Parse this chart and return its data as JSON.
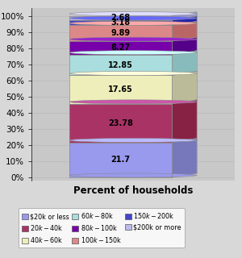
{
  "values": [
    21.7,
    23.78,
    17.65,
    12.85,
    8.27,
    9.89,
    3.18,
    2.68
  ],
  "colors_front": [
    "#9999EE",
    "#AA3366",
    "#EEEEBB",
    "#AADDDD",
    "#7700AA",
    "#DD8888",
    "#4444CC",
    "#BBBBEE"
  ],
  "colors_side": [
    "#7777BB",
    "#882244",
    "#BBBB99",
    "#88BBBB",
    "#550088",
    "#BB6666",
    "#2222AA",
    "#9999CC"
  ],
  "colors_top": [
    "#BBBBFF",
    "#CC55AA",
    "#FFFFDD",
    "#CCFFFF",
    "#9922CC",
    "#FFAAAA",
    "#6666FF",
    "#DDDDFF"
  ],
  "xlabel": "Percent of households",
  "yticks": [
    0,
    10,
    20,
    30,
    40,
    50,
    60,
    70,
    80,
    90,
    100
  ],
  "yticklabels": [
    "0%",
    "10%",
    "20%",
    "30%",
    "40%",
    "50%",
    "60%",
    "70%",
    "80%",
    "90%",
    "100%"
  ],
  "legend_labels": [
    "$20k or less",
    "$20k - $40k",
    "$40k - $60k",
    "$60k - $80k",
    "$80k - $100k",
    "$100k - $150k",
    "$150k - $200k",
    "$200k or more"
  ],
  "legend_colors": [
    "#9999EE",
    "#AA3366",
    "#EEEEBB",
    "#AADDDD",
    "#7700AA",
    "#DD8888",
    "#4444CC",
    "#BBBBEE"
  ],
  "bg_color": "#D8D8D8",
  "plot_bg": "#C8C8C8"
}
